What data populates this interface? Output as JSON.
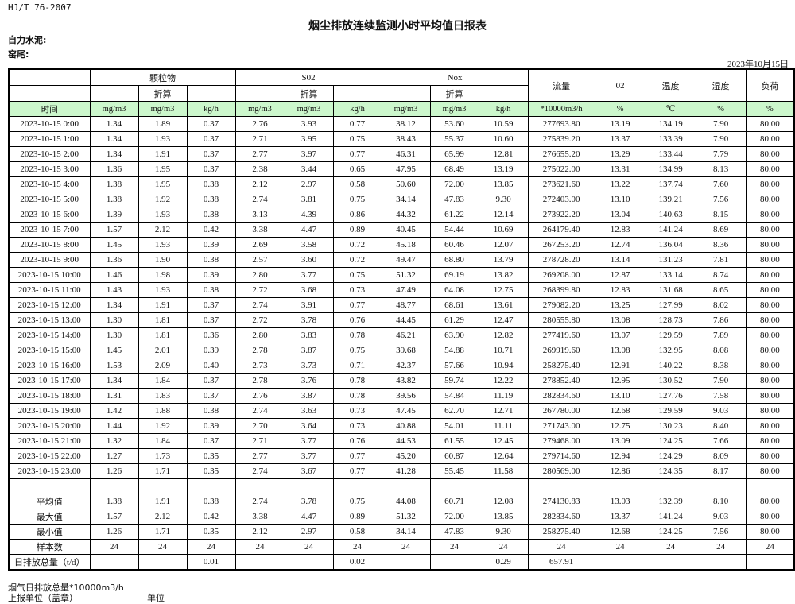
{
  "standard": "HJ/T  76-2007",
  "title": "烟尘排放连续监测小时平均值日报表",
  "company_label": "自力水泥:",
  "location_label": "窑尾:",
  "report_date": "2023年10月15日",
  "header": {
    "groups": [
      "颗粒物",
      "S02",
      "Nox"
    ],
    "converted": "折算",
    "flow": "流量",
    "o2": "02",
    "temperature": "温度",
    "humidity": "湿度",
    "load": "负荷"
  },
  "units": [
    "时间",
    "mg/m3",
    "mg/m3",
    "kg/h",
    "mg/m3",
    "mg/m3",
    "kg/h",
    "mg/m3",
    "mg/m3",
    "kg/h",
    "*10000m3/h",
    "%",
    "℃",
    "%",
    "%"
  ],
  "rows": [
    [
      "2023-10-15 0:00",
      "1.34",
      "1.89",
      "0.37",
      "2.76",
      "3.93",
      "0.77",
      "38.12",
      "53.60",
      "10.59",
      "277693.80",
      "13.19",
      "134.19",
      "7.90",
      "80.00"
    ],
    [
      "2023-10-15 1:00",
      "1.34",
      "1.93",
      "0.37",
      "2.71",
      "3.95",
      "0.75",
      "38.43",
      "55.37",
      "10.60",
      "275839.20",
      "13.37",
      "133.39",
      "7.90",
      "80.00"
    ],
    [
      "2023-10-15 2:00",
      "1.34",
      "1.91",
      "0.37",
      "2.77",
      "3.97",
      "0.77",
      "46.31",
      "65.99",
      "12.81",
      "276655.20",
      "13.29",
      "133.44",
      "7.79",
      "80.00"
    ],
    [
      "2023-10-15 3:00",
      "1.36",
      "1.95",
      "0.37",
      "2.38",
      "3.44",
      "0.65",
      "47.95",
      "68.49",
      "13.19",
      "275022.00",
      "13.31",
      "134.99",
      "8.13",
      "80.00"
    ],
    [
      "2023-10-15 4:00",
      "1.38",
      "1.95",
      "0.38",
      "2.12",
      "2.97",
      "0.58",
      "50.60",
      "72.00",
      "13.85",
      "273621.60",
      "13.22",
      "137.74",
      "7.60",
      "80.00"
    ],
    [
      "2023-10-15 5:00",
      "1.38",
      "1.92",
      "0.38",
      "2.74",
      "3.81",
      "0.75",
      "34.14",
      "47.83",
      "9.30",
      "272403.00",
      "13.10",
      "139.21",
      "7.56",
      "80.00"
    ],
    [
      "2023-10-15 6:00",
      "1.39",
      "1.93",
      "0.38",
      "3.13",
      "4.39",
      "0.86",
      "44.32",
      "61.22",
      "12.14",
      "273922.20",
      "13.04",
      "140.63",
      "8.15",
      "80.00"
    ],
    [
      "2023-10-15 7:00",
      "1.57",
      "2.12",
      "0.42",
      "3.38",
      "4.47",
      "0.89",
      "40.45",
      "54.44",
      "10.69",
      "264179.40",
      "12.83",
      "141.24",
      "8.69",
      "80.00"
    ],
    [
      "2023-10-15 8:00",
      "1.45",
      "1.93",
      "0.39",
      "2.69",
      "3.58",
      "0.72",
      "45.18",
      "60.46",
      "12.07",
      "267253.20",
      "12.74",
      "136.04",
      "8.36",
      "80.00"
    ],
    [
      "2023-10-15 9:00",
      "1.36",
      "1.90",
      "0.38",
      "2.57",
      "3.60",
      "0.72",
      "49.47",
      "68.80",
      "13.79",
      "278728.20",
      "13.14",
      "131.23",
      "7.81",
      "80.00"
    ],
    [
      "2023-10-15 10:00",
      "1.46",
      "1.98",
      "0.39",
      "2.80",
      "3.77",
      "0.75",
      "51.32",
      "69.19",
      "13.82",
      "269208.00",
      "12.87",
      "133.14",
      "8.74",
      "80.00"
    ],
    [
      "2023-10-15 11:00",
      "1.43",
      "1.93",
      "0.38",
      "2.72",
      "3.68",
      "0.73",
      "47.49",
      "64.08",
      "12.75",
      "268399.80",
      "12.83",
      "131.68",
      "8.65",
      "80.00"
    ],
    [
      "2023-10-15 12:00",
      "1.34",
      "1.91",
      "0.37",
      "2.74",
      "3.91",
      "0.77",
      "48.77",
      "68.61",
      "13.61",
      "279082.20",
      "13.25",
      "127.99",
      "8.02",
      "80.00"
    ],
    [
      "2023-10-15 13:00",
      "1.30",
      "1.81",
      "0.37",
      "2.72",
      "3.78",
      "0.76",
      "44.45",
      "61.29",
      "12.47",
      "280555.80",
      "13.08",
      "128.73",
      "7.86",
      "80.00"
    ],
    [
      "2023-10-15 14:00",
      "1.30",
      "1.81",
      "0.36",
      "2.80",
      "3.83",
      "0.78",
      "46.21",
      "63.90",
      "12.82",
      "277419.60",
      "13.07",
      "129.59",
      "7.89",
      "80.00"
    ],
    [
      "2023-10-15 15:00",
      "1.45",
      "2.01",
      "0.39",
      "2.78",
      "3.87",
      "0.75",
      "39.68",
      "54.88",
      "10.71",
      "269919.60",
      "13.08",
      "132.95",
      "8.08",
      "80.00"
    ],
    [
      "2023-10-15 16:00",
      "1.53",
      "2.09",
      "0.40",
      "2.73",
      "3.73",
      "0.71",
      "42.37",
      "57.66",
      "10.94",
      "258275.40",
      "12.91",
      "140.22",
      "8.38",
      "80.00"
    ],
    [
      "2023-10-15 17:00",
      "1.34",
      "1.84",
      "0.37",
      "2.78",
      "3.76",
      "0.78",
      "43.82",
      "59.74",
      "12.22",
      "278852.40",
      "12.95",
      "130.52",
      "7.90",
      "80.00"
    ],
    [
      "2023-10-15 18:00",
      "1.31",
      "1.83",
      "0.37",
      "2.76",
      "3.87",
      "0.78",
      "39.56",
      "54.84",
      "11.19",
      "282834.60",
      "13.10",
      "127.76",
      "7.58",
      "80.00"
    ],
    [
      "2023-10-15 19:00",
      "1.42",
      "1.88",
      "0.38",
      "2.74",
      "3.63",
      "0.73",
      "47.45",
      "62.70",
      "12.71",
      "267780.00",
      "12.68",
      "129.59",
      "9.03",
      "80.00"
    ],
    [
      "2023-10-15 20:00",
      "1.44",
      "1.92",
      "0.39",
      "2.70",
      "3.64",
      "0.73",
      "40.88",
      "54.01",
      "11.11",
      "271743.00",
      "12.75",
      "130.23",
      "8.40",
      "80.00"
    ],
    [
      "2023-10-15 21:00",
      "1.32",
      "1.84",
      "0.37",
      "2.71",
      "3.77",
      "0.76",
      "44.53",
      "61.55",
      "12.45",
      "279468.00",
      "13.09",
      "124.25",
      "7.66",
      "80.00"
    ],
    [
      "2023-10-15 22:00",
      "1.27",
      "1.73",
      "0.35",
      "2.77",
      "3.77",
      "0.77",
      "45.20",
      "60.87",
      "12.64",
      "279714.60",
      "12.94",
      "124.29",
      "8.09",
      "80.00"
    ],
    [
      "2023-10-15 23:00",
      "1.26",
      "1.71",
      "0.35",
      "2.74",
      "3.67",
      "0.77",
      "41.28",
      "55.45",
      "11.58",
      "280569.00",
      "12.86",
      "124.35",
      "8.17",
      "80.00"
    ]
  ],
  "summary": [
    [
      "平均值",
      "1.38",
      "1.91",
      "0.38",
      "2.74",
      "3.78",
      "0.75",
      "44.08",
      "60.71",
      "12.08",
      "274130.83",
      "13.03",
      "132.39",
      "8.10",
      "80.00"
    ],
    [
      "最大值",
      "1.57",
      "2.12",
      "0.42",
      "3.38",
      "4.47",
      "0.89",
      "51.32",
      "72.00",
      "13.85",
      "282834.60",
      "13.37",
      "141.24",
      "9.03",
      "80.00"
    ],
    [
      "最小值",
      "1.26",
      "1.71",
      "0.35",
      "2.12",
      "2.97",
      "0.58",
      "34.14",
      "47.83",
      "9.30",
      "258275.40",
      "12.68",
      "124.25",
      "7.56",
      "80.00"
    ],
    [
      "样本数",
      "24",
      "24",
      "24",
      "24",
      "24",
      "24",
      "24",
      "24",
      "24",
      "24",
      "24",
      "24",
      "24",
      "24"
    ],
    [
      "日排放总量（t/d）",
      "",
      "",
      "0.01",
      "",
      "",
      "0.02",
      "",
      "",
      "0.29",
      "657.91",
      "",
      "",
      "",
      ""
    ]
  ],
  "footer": {
    "flue_gas_total": "烟气日排放总量*10000m3/h",
    "reporting_unit": "上报单位（盖章）",
    "unit": "单位"
  }
}
